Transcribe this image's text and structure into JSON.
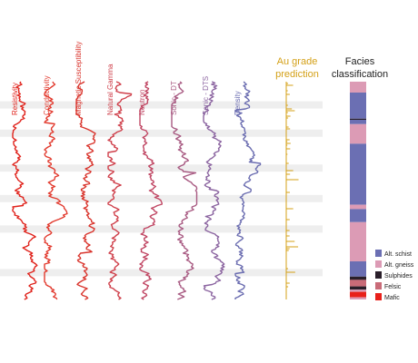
{
  "tracks": [
    {
      "label": "Resistivity",
      "color": "#e0231c",
      "seed": 11
    },
    {
      "label": "Conductivity",
      "color": "#e23a2e",
      "seed": 23
    },
    {
      "label": "Magnetic Susceptibility",
      "color": "#d9342c",
      "seed": 37
    },
    {
      "label": "Natural Gamma",
      "color": "#cf3f4a",
      "seed": 41
    },
    {
      "label": "Neutron",
      "color": "#c04663",
      "seed": 53
    },
    {
      "label": "Sonic - DT",
      "color": "#a85a82",
      "seed": 67
    },
    {
      "label": "Sonic - DTS",
      "color": "#8b64a0",
      "seed": 79
    },
    {
      "label": "Density",
      "color": "#6a6cb0",
      "seed": 83
    }
  ],
  "au_track": {
    "title_line1": "Au grade",
    "title_line2": "prediction",
    "color": "#d4a017",
    "seed": 97
  },
  "facies": {
    "title_line1": "Facies",
    "title_line2": "classification",
    "segments": [
      {
        "facies": "Alt. gneiss",
        "thickness": 0.05
      },
      {
        "facies": "Alt. schist",
        "thickness": 0.12
      },
      {
        "facies": "Sulphides",
        "thickness": 0.005
      },
      {
        "facies": "Alt. schist",
        "thickness": 0.02
      },
      {
        "facies": "Alt. gneiss",
        "thickness": 0.09
      },
      {
        "facies": "Alt. schist",
        "thickness": 0.28
      },
      {
        "facies": "Alt. gneiss",
        "thickness": 0.02
      },
      {
        "facies": "Alt. schist",
        "thickness": 0.06
      },
      {
        "facies": "Alt. gneiss",
        "thickness": 0.18
      },
      {
        "facies": "Alt. schist",
        "thickness": 0.07
      },
      {
        "facies": "Sulphides",
        "thickness": 0.015
      },
      {
        "facies": "Felsic",
        "thickness": 0.03
      },
      {
        "facies": "Sulphides",
        "thickness": 0.015
      },
      {
        "facies": "Alt. gneiss",
        "thickness": 0.01
      },
      {
        "facies": "Mafic",
        "thickness": 0.025
      },
      {
        "facies": "Alt. gneiss",
        "thickness": 0.01
      }
    ],
    "legend": [
      {
        "label": "Alt. schist",
        "color": "#6b6fb3"
      },
      {
        "label": "Alt. gneiss",
        "color": "#dc9bb5"
      },
      {
        "label": "Sulphides",
        "color": "#2a1f2a"
      },
      {
        "label": "Felsic",
        "color": "#c96b78"
      },
      {
        "label": "Mafic",
        "color": "#e8201a"
      }
    ]
  },
  "highlight_bands": [
    0.09,
    0.22,
    0.38,
    0.52,
    0.66,
    0.86
  ]
}
